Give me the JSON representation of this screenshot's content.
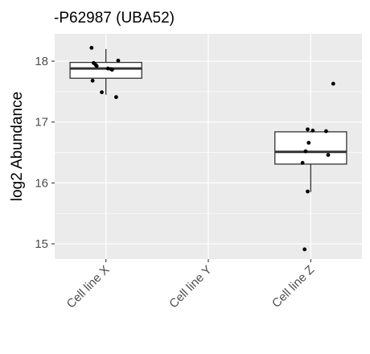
{
  "chart_data": {
    "type": "box",
    "title": "-P62987 (UBA52)",
    "xlabel": "",
    "ylabel": "log2 Abundance",
    "ylim": [
      14.75,
      18.45
    ],
    "yticks": [
      15,
      16,
      17,
      18
    ],
    "ytick_labels": [
      "15",
      "16",
      "17",
      "18"
    ],
    "categories": [
      "Cell line X",
      "Cell line Y",
      "Cell line Z"
    ],
    "grid": true,
    "legend": "none",
    "colors": {
      "panel": "#ebebeb",
      "grid": "#ffffff",
      "box_fill": "#ffffff",
      "box_line": "#333333",
      "point": "#000000",
      "tick_text": "#4d4d4d"
    },
    "boxes": [
      {
        "category": "Cell line X",
        "whisker_low": 17.45,
        "q1": 17.72,
        "median": 17.88,
        "q3": 17.98,
        "whisker_high": 18.2
      },
      {
        "category": "Cell line Z",
        "whisker_low": 15.85,
        "q1": 16.31,
        "median": 16.51,
        "q3": 16.84,
        "whisker_high": 16.84
      }
    ],
    "points": [
      {
        "category": "Cell line X",
        "values": [
          18.22,
          17.97,
          17.94,
          17.92,
          17.88,
          17.87,
          17.86,
          17.68,
          17.49,
          17.41,
          18.01
        ],
        "jitter": [
          -0.14,
          -0.12,
          -0.1,
          -0.09,
          0.02,
          0.05,
          0.06,
          -0.13,
          -0.04,
          0.1,
          0.12
        ]
      },
      {
        "category": "Cell line Z",
        "values": [
          17.63,
          16.88,
          16.86,
          16.85,
          16.66,
          16.52,
          16.46,
          16.33,
          15.86,
          14.91
        ],
        "jitter": [
          0.22,
          -0.03,
          0.02,
          0.15,
          -0.02,
          -0.05,
          0.17,
          -0.08,
          -0.03,
          -0.06
        ]
      }
    ]
  }
}
